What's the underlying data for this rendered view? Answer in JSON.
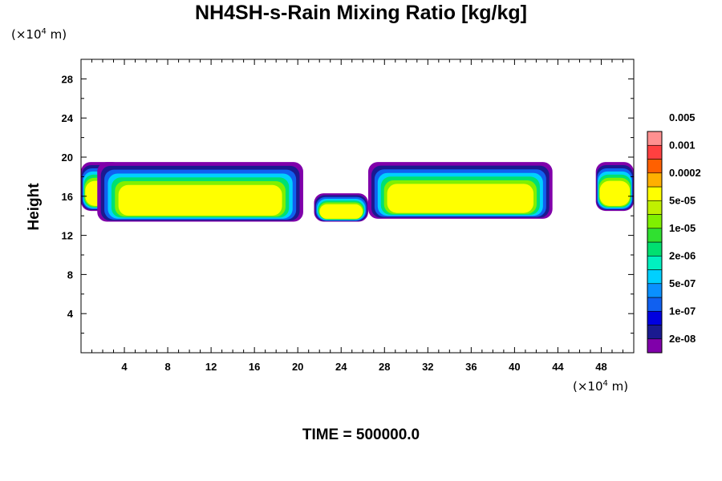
{
  "chart_data": {
    "type": "heatmap",
    "title": "NH4SH-s-Rain Mixing Ratio [kg/kg]",
    "xlabel": "",
    "ylabel": "Height",
    "x_unit_prefix": "(×10",
    "x_unit_exp": "4",
    "x_unit_suffix": " m)",
    "y_unit_prefix": "(×10",
    "y_unit_exp": "4",
    "y_unit_suffix": " m)",
    "xlim": [
      0,
      51
    ],
    "ylim": [
      0,
      30
    ],
    "x_ticks": [
      4,
      8,
      12,
      16,
      20,
      24,
      28,
      32,
      36,
      40,
      44,
      48
    ],
    "y_ticks": [
      4,
      8,
      12,
      16,
      20,
      24,
      28
    ],
    "colorbar": {
      "colors": [
        "#8000aa",
        "#1a1a90",
        "#0000e0",
        "#1060f0",
        "#0a90ff",
        "#00d0ff",
        "#00f0c0",
        "#00e070",
        "#30e030",
        "#80f000",
        "#c0f000",
        "#ffff00",
        "#ffb000",
        "#ff6000",
        "#ff4040",
        "#ff9090"
      ],
      "labels": [
        "2e-08",
        "1e-07",
        "5e-07",
        "2e-06",
        "1e-05",
        "5e-05",
        "0.0002",
        "0.001",
        "0.005"
      ]
    },
    "cloud_bands": [
      {
        "x0": 0,
        "x1": 3.8,
        "ybot": 14.5,
        "ytop": 19.5
      },
      {
        "x0": 1.5,
        "x1": 20.5,
        "ybot": 13.4,
        "ytop": 19.5
      },
      {
        "x0": 21.5,
        "x1": 26.5,
        "ybot": 13.4,
        "ytop": 16.3
      },
      {
        "x0": 26.5,
        "x1": 43.5,
        "ybot": 13.7,
        "ytop": 19.5
      },
      {
        "x0": 47.5,
        "x1": 51,
        "ybot": 14.5,
        "ytop": 19.5
      }
    ]
  },
  "footer": {
    "time_label": "TIME = 500000.0"
  }
}
